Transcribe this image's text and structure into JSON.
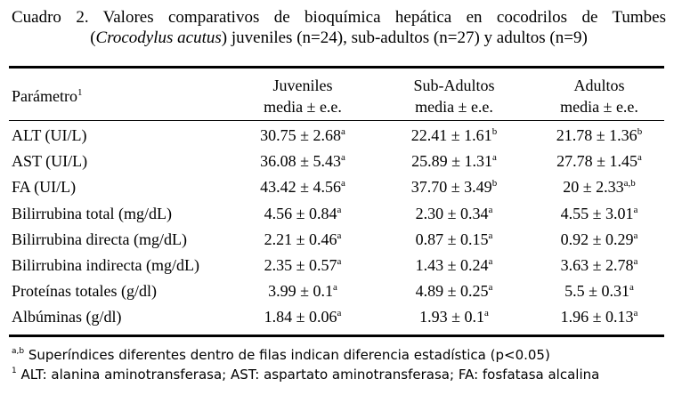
{
  "caption": {
    "line1": "Cuadro 2. Valores comparativos de bioquímica hepática en cocodrilos de Tumbes",
    "line2_open": "(",
    "line2_italic": "Crocodylus acutus",
    "line2_rest": ") juveniles (n=24), sub-adultos (n=27) y adultos (n=9)"
  },
  "header": {
    "parameter_label": "Parámetro",
    "parameter_sup": "1",
    "columns": [
      {
        "name": "Juveniles",
        "sub": "media ± e.e."
      },
      {
        "name": "Sub-Adultos",
        "sub": "media ± e.e."
      },
      {
        "name": "Adultos",
        "sub": "media ± e.e."
      }
    ]
  },
  "rows": [
    {
      "label": "ALT (UI/L)",
      "cells": [
        {
          "value": "30.75 ± 2.68",
          "sup": "a"
        },
        {
          "value": "22.41 ± 1.61",
          "sup": "b"
        },
        {
          "value": "21.78 ± 1.36",
          "sup": "b"
        }
      ]
    },
    {
      "label": "AST (UI/L)",
      "cells": [
        {
          "value": "36.08 ± 5.43",
          "sup": "a"
        },
        {
          "value": "25.89 ± 1.31",
          "sup": "a"
        },
        {
          "value": "27.78 ± 1.45",
          "sup": "a"
        }
      ]
    },
    {
      "label": "FA (UI/L)",
      "cells": [
        {
          "value": "43.42 ± 4.56",
          "sup": "a"
        },
        {
          "value": "37.70 ± 3.49",
          "sup": "b"
        },
        {
          "value": "20 ± 2.33",
          "sup": "a,b"
        }
      ]
    },
    {
      "label": "Bilirrubina total (mg/dL)",
      "cells": [
        {
          "value": "4.56 ± 0.84",
          "sup": "a"
        },
        {
          "value": "2.30 ± 0.34",
          "sup": "a"
        },
        {
          "value": "4.55 ± 3.01",
          "sup": "a"
        }
      ]
    },
    {
      "label": "Bilirrubina directa (mg/dL)",
      "cells": [
        {
          "value": "2.21 ± 0.46",
          "sup": "a"
        },
        {
          "value": "0.87 ± 0.15",
          "sup": "a"
        },
        {
          "value": "0.92 ± 0.29",
          "sup": "a"
        }
      ]
    },
    {
      "label": "Bilirrubina indirecta (mg/dL)",
      "cells": [
        {
          "value": "2.35 ± 0.57",
          "sup": "a"
        },
        {
          "value": "1.43 ± 0.24",
          "sup": "a"
        },
        {
          "value": "3.63 ± 2.78",
          "sup": "a"
        }
      ]
    },
    {
      "label": "Proteínas totales (g/dl)",
      "cells": [
        {
          "value": "3.99 ± 0.1",
          "sup": "a"
        },
        {
          "value": "4.89 ± 0.25",
          "sup": "a"
        },
        {
          "value": "5.5 ± 0.31",
          "sup": "a"
        }
      ]
    },
    {
      "label": "Albúminas (g/dl)",
      "cells": [
        {
          "value": "1.84 ± 0.06",
          "sup": "a"
        },
        {
          "value": "1.93 ± 0.1",
          "sup": "a"
        },
        {
          "value": "1.96 ± 0.13",
          "sup": "a"
        }
      ]
    }
  ],
  "footnotes": [
    {
      "sup": "a,b",
      "text": " Superíndices diferentes dentro de filas indican diferencia estadística (p<0.05)"
    },
    {
      "sup": "1",
      "text": " ALT: alanina aminotransferasa; AST: aspartato aminotransferasa; FA: fosfatasa alcalina"
    }
  ]
}
